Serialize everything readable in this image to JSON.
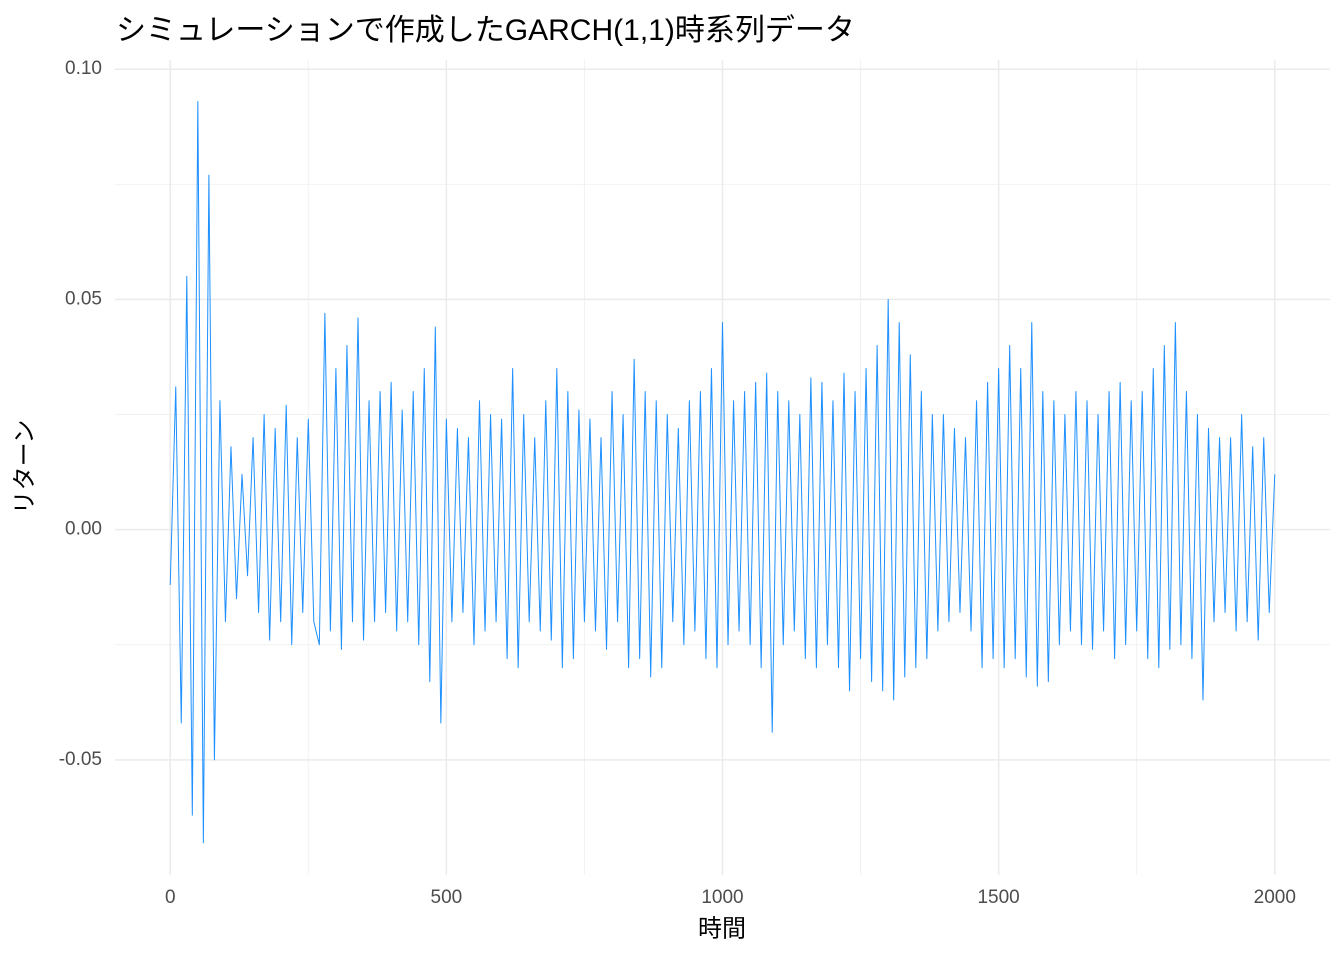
{
  "chart_data": {
    "type": "line",
    "title": "シミュレーションで作成したGARCH(1,1)時系列データ",
    "x_label": "時間",
    "y_label": "リターン",
    "color": "#1e90ff",
    "grid": true,
    "xlim": [
      -100,
      2100
    ],
    "ylim": [
      -0.075,
      0.102
    ],
    "xticks": [
      0,
      500,
      1000,
      1500,
      2000
    ],
    "xminor_ticks": [
      250,
      750,
      1250,
      1750
    ],
    "yticks": [
      {
        "value": -0.05,
        "label": "-0.05"
      },
      {
        "value": 0,
        "label": "0.00"
      },
      {
        "value": 0.05,
        "label": "0.05"
      },
      {
        "value": 0.1,
        "label": "0.10"
      }
    ],
    "yminor_ticks": [
      -0.025,
      0.025,
      0.075
    ],
    "x": [
      0,
      10,
      20,
      30,
      40,
      50,
      60,
      70,
      80,
      90,
      100,
      110,
      120,
      130,
      140,
      150,
      160,
      170,
      180,
      190,
      200,
      210,
      220,
      230,
      240,
      250,
      260,
      270,
      280,
      290,
      300,
      310,
      320,
      330,
      340,
      350,
      360,
      370,
      380,
      390,
      400,
      410,
      420,
      430,
      440,
      450,
      460,
      470,
      480,
      490,
      500,
      510,
      520,
      530,
      540,
      550,
      560,
      570,
      580,
      590,
      600,
      610,
      620,
      630,
      640,
      650,
      660,
      670,
      680,
      690,
      700,
      710,
      720,
      730,
      740,
      750,
      760,
      770,
      780,
      790,
      800,
      810,
      820,
      830,
      840,
      850,
      860,
      870,
      880,
      890,
      900,
      910,
      920,
      930,
      940,
      950,
      960,
      970,
      980,
      990,
      1000,
      1010,
      1020,
      1030,
      1040,
      1050,
      1060,
      1070,
      1080,
      1090,
      1100,
      1110,
      1120,
      1130,
      1140,
      1150,
      1160,
      1170,
      1180,
      1190,
      1200,
      1210,
      1220,
      1230,
      1240,
      1250,
      1260,
      1270,
      1280,
      1290,
      1300,
      1310,
      1320,
      1330,
      1340,
      1350,
      1360,
      1370,
      1380,
      1390,
      1400,
      1410,
      1420,
      1430,
      1440,
      1450,
      1460,
      1470,
      1480,
      1490,
      1500,
      1510,
      1520,
      1530,
      1540,
      1550,
      1560,
      1570,
      1580,
      1590,
      1600,
      1610,
      1620,
      1630,
      1640,
      1650,
      1660,
      1670,
      1680,
      1690,
      1700,
      1710,
      1720,
      1730,
      1740,
      1750,
      1760,
      1770,
      1780,
      1790,
      1800,
      1810,
      1820,
      1830,
      1840,
      1850,
      1860,
      1870,
      1880,
      1890,
      1900,
      1910,
      1920,
      1930,
      1940,
      1950,
      1960,
      1970,
      1980,
      1990,
      2000
    ],
    "values": [
      -0.012,
      0.031,
      -0.042,
      0.055,
      -0.062,
      0.093,
      -0.068,
      0.077,
      -0.05,
      0.028,
      -0.02,
      0.018,
      -0.015,
      0.012,
      -0.01,
      0.02,
      -0.018,
      0.025,
      -0.024,
      0.022,
      -0.02,
      0.027,
      -0.025,
      0.02,
      -0.018,
      0.024,
      -0.02,
      -0.025,
      0.047,
      -0.022,
      0.035,
      -0.026,
      0.04,
      -0.02,
      0.046,
      -0.024,
      0.028,
      -0.02,
      0.03,
      -0.018,
      0.032,
      -0.022,
      0.026,
      -0.02,
      0.03,
      -0.025,
      0.035,
      -0.033,
      0.044,
      -0.042,
      0.024,
      -0.02,
      0.022,
      -0.018,
      0.02,
      -0.025,
      0.028,
      -0.022,
      0.025,
      -0.02,
      0.024,
      -0.028,
      0.035,
      -0.03,
      0.025,
      -0.02,
      0.02,
      -0.022,
      0.028,
      -0.024,
      0.035,
      -0.03,
      0.03,
      -0.028,
      0.026,
      -0.02,
      0.024,
      -0.022,
      0.02,
      -0.026,
      0.03,
      -0.02,
      0.025,
      -0.03,
      0.037,
      -0.028,
      0.03,
      -0.032,
      0.028,
      -0.03,
      0.025,
      -0.02,
      0.022,
      -0.025,
      0.028,
      -0.022,
      0.03,
      -0.028,
      0.035,
      -0.03,
      0.045,
      -0.025,
      0.028,
      -0.022,
      0.03,
      -0.025,
      0.032,
      -0.03,
      0.034,
      -0.044,
      0.03,
      -0.025,
      0.028,
      -0.022,
      0.025,
      -0.028,
      0.033,
      -0.03,
      0.032,
      -0.025,
      0.028,
      -0.03,
      0.034,
      -0.035,
      0.03,
      -0.028,
      0.035,
      -0.033,
      0.04,
      -0.035,
      0.05,
      -0.037,
      0.045,
      -0.032,
      0.038,
      -0.03,
      0.03,
      -0.028,
      0.025,
      -0.022,
      0.025,
      -0.02,
      0.022,
      -0.018,
      0.02,
      -0.022,
      0.028,
      -0.03,
      0.032,
      -0.028,
      0.035,
      -0.03,
      0.04,
      -0.028,
      0.035,
      -0.032,
      0.045,
      -0.034,
      0.03,
      -0.033,
      0.028,
      -0.025,
      0.025,
      -0.022,
      0.03,
      -0.025,
      0.028,
      -0.026,
      0.025,
      -0.022,
      0.03,
      -0.028,
      0.032,
      -0.025,
      0.028,
      -0.022,
      0.03,
      -0.028,
      0.035,
      -0.03,
      0.04,
      -0.026,
      0.045,
      -0.025,
      0.03,
      -0.028,
      0.025,
      -0.037,
      0.022,
      -0.02,
      0.02,
      -0.018,
      0.02,
      -0.022,
      0.025,
      -0.02,
      0.018,
      -0.024,
      0.02,
      -0.018,
      0.012
    ]
  }
}
